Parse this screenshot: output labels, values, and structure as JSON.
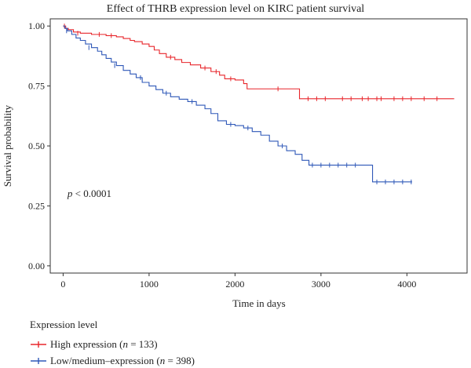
{
  "chart_data": {
    "type": "line",
    "subtype": "kaplan-meier",
    "title": "Effect of THRB expression level on KIRC patient survival",
    "xlabel": "Time in days",
    "ylabel": "Survival probability",
    "xlim": [
      -150,
      4700
    ],
    "ylim": [
      -0.03,
      1.03
    ],
    "xticks": [
      0,
      1000,
      2000,
      3000,
      4000
    ],
    "xtick_labels": [
      "0",
      "1000",
      "2000",
      "3000",
      "4000"
    ],
    "yticks": [
      0,
      0.25,
      0.5,
      0.75,
      1.0
    ],
    "ytick_labels": [
      "0.00",
      "0.25",
      "0.50",
      "0.75",
      "1.00"
    ],
    "annotation": {
      "prefix": "p",
      "text": " < 0.0001",
      "x": 50,
      "y": 0.3
    },
    "legend": {
      "title": "Expression level",
      "placement": "bottom-left"
    },
    "series": [
      {
        "label_main": "High expression (",
        "label_n": "n",
        "label_rest": " = 133)",
        "color": "#e8262b",
        "steps": [
          [
            0,
            1.0
          ],
          [
            30,
            0.99
          ],
          [
            60,
            0.985
          ],
          [
            120,
            0.975
          ],
          [
            200,
            0.97
          ],
          [
            330,
            0.965
          ],
          [
            500,
            0.96
          ],
          [
            620,
            0.955
          ],
          [
            700,
            0.948
          ],
          [
            780,
            0.94
          ],
          [
            830,
            0.935
          ],
          [
            920,
            0.925
          ],
          [
            1000,
            0.915
          ],
          [
            1060,
            0.9
          ],
          [
            1120,
            0.885
          ],
          [
            1200,
            0.87
          ],
          [
            1300,
            0.86
          ],
          [
            1380,
            0.848
          ],
          [
            1480,
            0.838
          ],
          [
            1600,
            0.825
          ],
          [
            1720,
            0.81
          ],
          [
            1820,
            0.795
          ],
          [
            1880,
            0.78
          ],
          [
            2000,
            0.775
          ],
          [
            2100,
            0.76
          ],
          [
            2140,
            0.738
          ],
          [
            2750,
            0.697
          ],
          [
            4550,
            0.697
          ]
        ],
        "censors": [
          [
            15,
            1.0
          ],
          [
            170,
            0.97
          ],
          [
            420,
            0.965
          ],
          [
            560,
            0.96
          ],
          [
            1250,
            0.87
          ],
          [
            1650,
            0.825
          ],
          [
            1780,
            0.81
          ],
          [
            1950,
            0.78
          ],
          [
            2500,
            0.738
          ],
          [
            2850,
            0.697
          ],
          [
            2950,
            0.697
          ],
          [
            3050,
            0.697
          ],
          [
            3250,
            0.697
          ],
          [
            3350,
            0.697
          ],
          [
            3480,
            0.697
          ],
          [
            3550,
            0.697
          ],
          [
            3650,
            0.697
          ],
          [
            3700,
            0.697
          ],
          [
            3850,
            0.697
          ],
          [
            3950,
            0.697
          ],
          [
            4050,
            0.697
          ],
          [
            4200,
            0.697
          ],
          [
            4350,
            0.697
          ]
        ]
      },
      {
        "label_main": "Low/medium–expression (",
        "label_n": "n",
        "label_rest": " = 398)",
        "color": "#2f58b8",
        "steps": [
          [
            0,
            1.0
          ],
          [
            20,
            0.99
          ],
          [
            50,
            0.98
          ],
          [
            100,
            0.965
          ],
          [
            150,
            0.95
          ],
          [
            200,
            0.94
          ],
          [
            260,
            0.925
          ],
          [
            330,
            0.91
          ],
          [
            400,
            0.895
          ],
          [
            450,
            0.88
          ],
          [
            500,
            0.865
          ],
          [
            560,
            0.85
          ],
          [
            620,
            0.835
          ],
          [
            700,
            0.815
          ],
          [
            780,
            0.8
          ],
          [
            850,
            0.785
          ],
          [
            920,
            0.765
          ],
          [
            1000,
            0.75
          ],
          [
            1080,
            0.735
          ],
          [
            1160,
            0.72
          ],
          [
            1250,
            0.705
          ],
          [
            1350,
            0.695
          ],
          [
            1450,
            0.685
          ],
          [
            1550,
            0.67
          ],
          [
            1650,
            0.655
          ],
          [
            1720,
            0.635
          ],
          [
            1800,
            0.605
          ],
          [
            1900,
            0.59
          ],
          [
            2000,
            0.585
          ],
          [
            2100,
            0.575
          ],
          [
            2200,
            0.56
          ],
          [
            2300,
            0.545
          ],
          [
            2400,
            0.52
          ],
          [
            2500,
            0.5
          ],
          [
            2600,
            0.48
          ],
          [
            2700,
            0.465
          ],
          [
            2780,
            0.44
          ],
          [
            2860,
            0.42
          ],
          [
            3600,
            0.35
          ],
          [
            4060,
            0.35
          ]
        ],
        "censors": [
          [
            40,
            0.98
          ],
          [
            300,
            0.91
          ],
          [
            600,
            0.835
          ],
          [
            900,
            0.785
          ],
          [
            1200,
            0.72
          ],
          [
            1500,
            0.685
          ],
          [
            1950,
            0.59
          ],
          [
            2150,
            0.575
          ],
          [
            2550,
            0.5
          ],
          [
            2900,
            0.42
          ],
          [
            3000,
            0.42
          ],
          [
            3100,
            0.42
          ],
          [
            3200,
            0.42
          ],
          [
            3300,
            0.42
          ],
          [
            3400,
            0.42
          ],
          [
            3650,
            0.35
          ],
          [
            3750,
            0.35
          ],
          [
            3850,
            0.35
          ],
          [
            3950,
            0.35
          ],
          [
            4050,
            0.35
          ]
        ]
      }
    ]
  }
}
